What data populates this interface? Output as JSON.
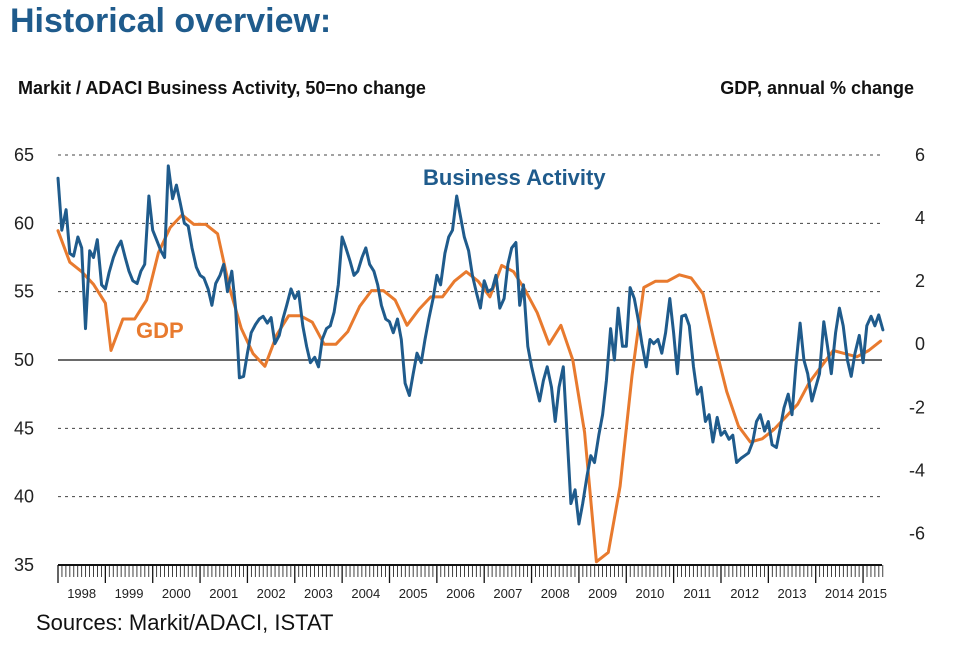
{
  "header": {
    "title": "Historical overview:",
    "left_axis_caption": "Markit / ADACI  Business Activity, 50=no change",
    "right_axis_caption": "GDP, annual % change"
  },
  "footer": {
    "sources": "Sources: Markit/ADACI, ISTAT"
  },
  "chart_data": {
    "type": "line",
    "title": "",
    "x": [
      "1998",
      "1999",
      "2000",
      "2001",
      "2002",
      "2003",
      "2004",
      "2005",
      "2006",
      "2007",
      "2008",
      "2009",
      "2010",
      "2011",
      "2012",
      "2013",
      "2014",
      "2015"
    ],
    "xlim": [
      1998,
      2015.4
    ],
    "y_left": {
      "label": "Markit / ADACI  Business Activity, 50=no change",
      "lim": [
        35,
        65
      ],
      "ticks": [
        35,
        40,
        45,
        50,
        55,
        60,
        65
      ]
    },
    "y_right": {
      "label": "GDP, annual % change",
      "lim": [
        -7,
        6
      ],
      "ticks": [
        -6,
        -4,
        -2,
        0,
        2,
        4,
        6
      ]
    },
    "grid": "dashed horizontal at left-axis ticks",
    "reference_line": {
      "axis": "left",
      "value": 50
    },
    "colors": {
      "business_activity": "#1F5B8C",
      "gdp": "#E87A2E",
      "title": "#1F5B8C"
    },
    "series": [
      {
        "name": "Business Activity",
        "axis": "left",
        "label_position": "above-2006-peak",
        "points": [
          [
            1998.0,
            63.3
          ],
          [
            1998.08,
            59.5
          ],
          [
            1998.17,
            61.0
          ],
          [
            1998.25,
            57.8
          ],
          [
            1998.33,
            57.6
          ],
          [
            1998.42,
            59.0
          ],
          [
            1998.5,
            58.2
          ],
          [
            1998.58,
            52.3
          ],
          [
            1998.67,
            58.0
          ],
          [
            1998.75,
            57.5
          ],
          [
            1998.83,
            58.8
          ],
          [
            1998.92,
            55.5
          ],
          [
            1999.0,
            55.2
          ],
          [
            1999.08,
            56.4
          ],
          [
            1999.17,
            57.5
          ],
          [
            1999.25,
            58.2
          ],
          [
            1999.33,
            58.7
          ],
          [
            1999.42,
            57.5
          ],
          [
            1999.5,
            56.5
          ],
          [
            1999.58,
            55.8
          ],
          [
            1999.67,
            55.6
          ],
          [
            1999.75,
            56.5
          ],
          [
            1999.83,
            57.0
          ],
          [
            1999.92,
            62.0
          ],
          [
            2000.0,
            59.5
          ],
          [
            2000.08,
            58.8
          ],
          [
            2000.17,
            58.0
          ],
          [
            2000.25,
            57.5
          ],
          [
            2000.33,
            64.2
          ],
          [
            2000.42,
            61.8
          ],
          [
            2000.5,
            62.8
          ],
          [
            2000.58,
            61.5
          ],
          [
            2000.67,
            60.0
          ],
          [
            2000.75,
            59.8
          ],
          [
            2000.83,
            58.2
          ],
          [
            2000.92,
            56.8
          ],
          [
            2001.0,
            56.2
          ],
          [
            2001.08,
            56.0
          ],
          [
            2001.17,
            55.2
          ],
          [
            2001.25,
            54.0
          ],
          [
            2001.33,
            55.6
          ],
          [
            2001.42,
            56.2
          ],
          [
            2001.5,
            57.0
          ],
          [
            2001.58,
            55.0
          ],
          [
            2001.67,
            56.5
          ],
          [
            2001.75,
            53.8
          ],
          [
            2001.83,
            48.7
          ],
          [
            2001.92,
            48.8
          ],
          [
            2002.0,
            50.5
          ],
          [
            2002.08,
            52.0
          ],
          [
            2002.17,
            52.6
          ],
          [
            2002.25,
            53.0
          ],
          [
            2002.33,
            53.2
          ],
          [
            2002.42,
            52.7
          ],
          [
            2002.5,
            53.1
          ],
          [
            2002.58,
            51.2
          ],
          [
            2002.67,
            51.8
          ],
          [
            2002.75,
            53.0
          ],
          [
            2002.83,
            54.0
          ],
          [
            2002.92,
            55.2
          ],
          [
            2003.0,
            54.5
          ],
          [
            2003.08,
            55.0
          ],
          [
            2003.17,
            52.5
          ],
          [
            2003.25,
            51.0
          ],
          [
            2003.33,
            49.8
          ],
          [
            2003.42,
            50.2
          ],
          [
            2003.5,
            49.5
          ],
          [
            2003.58,
            51.5
          ],
          [
            2003.67,
            52.3
          ],
          [
            2003.75,
            52.5
          ],
          [
            2003.83,
            53.5
          ],
          [
            2003.92,
            55.5
          ],
          [
            2004.0,
            59.0
          ],
          [
            2004.08,
            58.2
          ],
          [
            2004.17,
            57.2
          ],
          [
            2004.25,
            56.2
          ],
          [
            2004.33,
            56.5
          ],
          [
            2004.42,
            57.5
          ],
          [
            2004.5,
            58.2
          ],
          [
            2004.58,
            57.0
          ],
          [
            2004.67,
            56.5
          ],
          [
            2004.75,
            55.5
          ],
          [
            2004.83,
            54.0
          ],
          [
            2004.92,
            53.0
          ],
          [
            2005.0,
            52.8
          ],
          [
            2005.08,
            52.0
          ],
          [
            2005.17,
            53.0
          ],
          [
            2005.25,
            51.5
          ],
          [
            2005.33,
            48.3
          ],
          [
            2005.42,
            47.4
          ],
          [
            2005.5,
            49.0
          ],
          [
            2005.58,
            50.5
          ],
          [
            2005.67,
            49.8
          ],
          [
            2005.75,
            51.5
          ],
          [
            2005.83,
            53.0
          ],
          [
            2005.92,
            54.5
          ],
          [
            2006.0,
            56.2
          ],
          [
            2006.08,
            55.5
          ],
          [
            2006.17,
            57.8
          ],
          [
            2006.25,
            59.0
          ],
          [
            2006.33,
            59.5
          ],
          [
            2006.42,
            62.0
          ],
          [
            2006.5,
            60.5
          ],
          [
            2006.58,
            59.0
          ],
          [
            2006.67,
            58.0
          ],
          [
            2006.75,
            56.2
          ],
          [
            2006.83,
            55.0
          ],
          [
            2006.92,
            53.8
          ],
          [
            2007.0,
            55.8
          ],
          [
            2007.08,
            55.0
          ],
          [
            2007.17,
            55.2
          ],
          [
            2007.25,
            56.2
          ],
          [
            2007.33,
            53.8
          ],
          [
            2007.42,
            54.5
          ],
          [
            2007.5,
            57.0
          ],
          [
            2007.58,
            58.2
          ],
          [
            2007.67,
            58.6
          ],
          [
            2007.75,
            54.0
          ],
          [
            2007.83,
            55.5
          ],
          [
            2007.92,
            51.0
          ],
          [
            2008.0,
            49.5
          ],
          [
            2008.08,
            48.3
          ],
          [
            2008.17,
            47.0
          ],
          [
            2008.25,
            48.5
          ],
          [
            2008.33,
            49.5
          ],
          [
            2008.42,
            48.0
          ],
          [
            2008.5,
            45.5
          ],
          [
            2008.58,
            48.0
          ],
          [
            2008.67,
            49.5
          ],
          [
            2008.75,
            44.5
          ],
          [
            2008.83,
            39.5
          ],
          [
            2008.92,
            40.5
          ],
          [
            2009.0,
            38.0
          ],
          [
            2009.08,
            39.5
          ],
          [
            2009.17,
            41.5
          ],
          [
            2009.25,
            43.0
          ],
          [
            2009.33,
            42.5
          ],
          [
            2009.42,
            44.5
          ],
          [
            2009.5,
            46.0
          ],
          [
            2009.58,
            48.5
          ],
          [
            2009.67,
            52.3
          ],
          [
            2009.75,
            50.0
          ],
          [
            2009.83,
            53.8
          ],
          [
            2009.92,
            51.0
          ],
          [
            2010.0,
            51.0
          ],
          [
            2010.08,
            55.3
          ],
          [
            2010.17,
            54.5
          ],
          [
            2010.25,
            53.0
          ],
          [
            2010.33,
            51.2
          ],
          [
            2010.42,
            49.5
          ],
          [
            2010.5,
            51.5
          ],
          [
            2010.58,
            51.2
          ],
          [
            2010.67,
            51.5
          ],
          [
            2010.75,
            50.5
          ],
          [
            2010.83,
            52.0
          ],
          [
            2010.92,
            54.5
          ],
          [
            2011.0,
            52.0
          ],
          [
            2011.08,
            49.0
          ],
          [
            2011.17,
            53.2
          ],
          [
            2011.25,
            53.3
          ],
          [
            2011.33,
            52.5
          ],
          [
            2011.42,
            49.5
          ],
          [
            2011.5,
            47.5
          ],
          [
            2011.58,
            48.0
          ],
          [
            2011.67,
            45.5
          ],
          [
            2011.75,
            46.0
          ],
          [
            2011.83,
            44.0
          ],
          [
            2011.92,
            45.8
          ],
          [
            2012.0,
            44.5
          ],
          [
            2012.08,
            44.8
          ],
          [
            2012.17,
            44.2
          ],
          [
            2012.25,
            44.5
          ],
          [
            2012.33,
            42.5
          ],
          [
            2012.42,
            42.8
          ],
          [
            2012.5,
            43.0
          ],
          [
            2012.58,
            43.2
          ],
          [
            2012.67,
            44.0
          ],
          [
            2012.75,
            45.5
          ],
          [
            2012.83,
            46.0
          ],
          [
            2012.92,
            44.8
          ],
          [
            2013.0,
            45.5
          ],
          [
            2013.08,
            43.8
          ],
          [
            2013.17,
            43.6
          ],
          [
            2013.25,
            45.0
          ],
          [
            2013.33,
            46.5
          ],
          [
            2013.42,
            47.5
          ],
          [
            2013.5,
            46.0
          ],
          [
            2013.58,
            49.5
          ],
          [
            2013.67,
            52.7
          ],
          [
            2013.75,
            50.0
          ],
          [
            2013.83,
            49.0
          ],
          [
            2013.92,
            47.0
          ],
          [
            2014.0,
            48.0
          ],
          [
            2014.08,
            49.0
          ],
          [
            2014.17,
            52.8
          ],
          [
            2014.25,
            51.0
          ],
          [
            2014.33,
            49.0
          ],
          [
            2014.42,
            52.0
          ],
          [
            2014.5,
            53.8
          ],
          [
            2014.58,
            52.5
          ],
          [
            2014.67,
            50.0
          ],
          [
            2014.75,
            48.8
          ],
          [
            2014.83,
            50.5
          ],
          [
            2014.92,
            51.8
          ],
          [
            2015.0,
            49.8
          ],
          [
            2015.08,
            52.5
          ],
          [
            2015.17,
            53.2
          ],
          [
            2015.25,
            52.5
          ],
          [
            2015.33,
            53.3
          ],
          [
            2015.42,
            52.2
          ]
        ]
      },
      {
        "name": "GDP",
        "axis": "right",
        "label_position": "left-of-1999-trough",
        "points": [
          [
            1998.0,
            3.6
          ],
          [
            1998.25,
            2.6
          ],
          [
            1998.5,
            2.3
          ],
          [
            1998.75,
            1.9
          ],
          [
            1999.0,
            1.3
          ],
          [
            1999.12,
            -0.2
          ],
          [
            1999.37,
            0.8
          ],
          [
            1999.62,
            0.8
          ],
          [
            1999.87,
            1.4
          ],
          [
            2000.12,
            2.9
          ],
          [
            2000.37,
            3.7
          ],
          [
            2000.62,
            4.1
          ],
          [
            2000.87,
            3.8
          ],
          [
            2001.12,
            3.8
          ],
          [
            2001.37,
            3.5
          ],
          [
            2001.62,
            1.8
          ],
          [
            2001.87,
            0.5
          ],
          [
            2002.12,
            -0.3
          ],
          [
            2002.37,
            -0.7
          ],
          [
            2002.62,
            0.3
          ],
          [
            2002.87,
            0.9
          ],
          [
            2003.12,
            0.9
          ],
          [
            2003.37,
            0.7
          ],
          [
            2003.62,
            0.0
          ],
          [
            2003.87,
            0.0
          ],
          [
            2004.12,
            0.4
          ],
          [
            2004.37,
            1.2
          ],
          [
            2004.62,
            1.7
          ],
          [
            2004.87,
            1.7
          ],
          [
            2005.12,
            1.4
          ],
          [
            2005.37,
            0.6
          ],
          [
            2005.62,
            1.1
          ],
          [
            2005.87,
            1.5
          ],
          [
            2006.12,
            1.5
          ],
          [
            2006.37,
            2.0
          ],
          [
            2006.62,
            2.3
          ],
          [
            2006.87,
            2.0
          ],
          [
            2007.12,
            1.5
          ],
          [
            2007.37,
            2.5
          ],
          [
            2007.62,
            2.3
          ],
          [
            2007.87,
            1.7
          ],
          [
            2008.12,
            1.0
          ],
          [
            2008.37,
            0.0
          ],
          [
            2008.62,
            0.6
          ],
          [
            2008.87,
            -0.5
          ],
          [
            2009.12,
            -2.8
          ],
          [
            2009.37,
            -6.9
          ],
          [
            2009.62,
            -6.6
          ],
          [
            2009.87,
            -4.5
          ],
          [
            2010.12,
            -1.0
          ],
          [
            2010.37,
            1.8
          ],
          [
            2010.62,
            2.0
          ],
          [
            2010.87,
            2.0
          ],
          [
            2011.12,
            2.2
          ],
          [
            2011.37,
            2.1
          ],
          [
            2011.62,
            1.6
          ],
          [
            2011.87,
            0.0
          ],
          [
            2012.12,
            -1.5
          ],
          [
            2012.37,
            -2.6
          ],
          [
            2012.62,
            -3.1
          ],
          [
            2012.87,
            -3.0
          ],
          [
            2013.12,
            -2.7
          ],
          [
            2013.37,
            -2.3
          ],
          [
            2013.62,
            -1.9
          ],
          [
            2013.87,
            -1.2
          ],
          [
            2014.12,
            -0.7
          ],
          [
            2014.37,
            -0.2
          ],
          [
            2014.62,
            -0.3
          ],
          [
            2014.87,
            -0.4
          ],
          [
            2015.12,
            -0.2
          ],
          [
            2015.37,
            0.1
          ]
        ]
      }
    ]
  }
}
